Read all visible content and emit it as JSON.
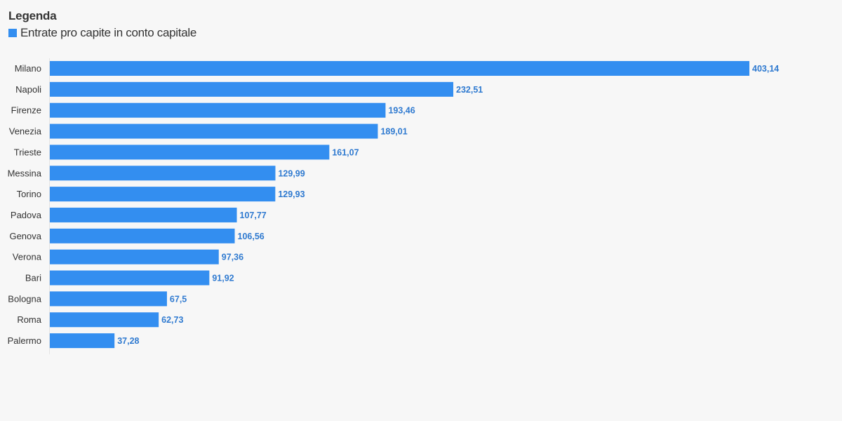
{
  "legend": {
    "title": "Legenda",
    "items": [
      {
        "label": "Entrate pro capite in conto capitale",
        "color": "#338ef0"
      }
    ]
  },
  "chart_data": {
    "type": "bar",
    "orientation": "horizontal",
    "categories": [
      "Milano",
      "Napoli",
      "Firenze",
      "Venezia",
      "Trieste",
      "Messina",
      "Torino",
      "Padova",
      "Genova",
      "Verona",
      "Bari",
      "Bologna",
      "Roma",
      "Palermo"
    ],
    "series": [
      {
        "name": "Entrate pro capite in conto capitale",
        "color": "#338ef0",
        "values": [
          403.14,
          232.51,
          193.46,
          189.01,
          161.07,
          129.99,
          129.93,
          107.77,
          106.56,
          97.36,
          91.92,
          67.5,
          62.73,
          37.28
        ],
        "labels": [
          "403,14",
          "232,51",
          "193,46",
          "189,01",
          "161,07",
          "129,99",
          "129,93",
          "107,77",
          "106,56",
          "97,36",
          "91,92",
          "67,5",
          "62,73",
          "37,28"
        ]
      }
    ],
    "title": "",
    "xlabel": "",
    "ylabel": "",
    "xlim": [
      0,
      403.14
    ],
    "grid": false,
    "legend_position": "top-left",
    "value_label_color": "#2f7ad0"
  }
}
